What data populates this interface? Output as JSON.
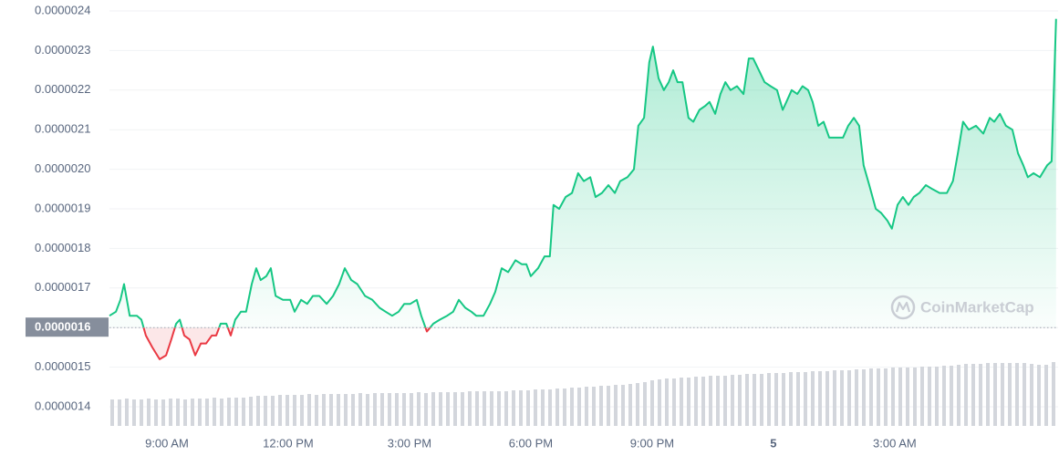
{
  "chart_data": {
    "type": "line",
    "color_up": "#16c784",
    "color_down": "#ea3943",
    "volume_color": "#d3d6dc",
    "grid": true,
    "xlim": [
      7.58,
      31.04
    ],
    "xticks": [
      {
        "value": 9,
        "label": "9:00 AM"
      },
      {
        "value": 12,
        "label": "12:00 PM"
      },
      {
        "value": 15,
        "label": "3:00 PM"
      },
      {
        "value": 18,
        "label": "6:00 PM"
      },
      {
        "value": 21,
        "label": "9:00 PM"
      },
      {
        "value": 24,
        "label": "5"
      },
      {
        "value": 27,
        "label": "3:00 AM"
      }
    ],
    "ylim": [
      1.4e-06,
      2.4e-06
    ],
    "yticks": [
      {
        "value": 1.4e-06,
        "label": "0.0000014"
      },
      {
        "value": 1.5e-06,
        "label": "0.0000015"
      },
      {
        "value": 1.6e-06,
        "label": "0.0000016"
      },
      {
        "value": 1.7e-06,
        "label": "0.0000017"
      },
      {
        "value": 1.8e-06,
        "label": "0.0000018"
      },
      {
        "value": 1.9e-06,
        "label": "0.0000019"
      },
      {
        "value": 2e-06,
        "label": "0.0000020"
      },
      {
        "value": 2.1e-06,
        "label": "0.0000021"
      },
      {
        "value": 2.2e-06,
        "label": "0.0000022"
      },
      {
        "value": 2.3e-06,
        "label": "0.0000023"
      },
      {
        "value": 2.4e-06,
        "label": "0.0000024"
      }
    ],
    "baseline": {
      "value": 1.6e-06,
      "label": "0.0000016"
    },
    "watermark": "CoinMarketCap",
    "x": [
      7.58,
      7.74,
      7.85,
      7.94,
      8.08,
      8.26,
      8.37,
      8.48,
      8.64,
      8.82,
      8.98,
      9.11,
      9.23,
      9.32,
      9.43,
      9.56,
      9.7,
      9.84,
      9.97,
      10.11,
      10.22,
      10.33,
      10.47,
      10.58,
      10.69,
      10.83,
      10.96,
      11.1,
      11.21,
      11.32,
      11.46,
      11.57,
      11.69,
      11.87,
      12.05,
      12.16,
      12.32,
      12.47,
      12.61,
      12.77,
      12.95,
      13.11,
      13.26,
      13.4,
      13.56,
      13.71,
      13.9,
      14.08,
      14.26,
      14.41,
      14.57,
      14.73,
      14.87,
      15.02,
      15.18,
      15.29,
      15.43,
      15.59,
      15.75,
      15.93,
      16.08,
      16.22,
      16.38,
      16.53,
      16.65,
      16.83,
      16.99,
      17.12,
      17.28,
      17.44,
      17.62,
      17.78,
      17.89,
      18.0,
      18.18,
      18.34,
      18.47,
      18.56,
      18.7,
      18.86,
      19.02,
      19.17,
      19.31,
      19.47,
      19.6,
      19.76,
      19.92,
      20.08,
      20.21,
      20.39,
      20.55,
      20.66,
      20.8,
      20.93,
      21.02,
      21.16,
      21.29,
      21.41,
      21.52,
      21.63,
      21.75,
      21.9,
      22.02,
      22.17,
      22.31,
      22.42,
      22.56,
      22.69,
      22.81,
      22.94,
      23.1,
      23.26,
      23.39,
      23.5,
      23.64,
      23.78,
      23.93,
      24.09,
      24.23,
      24.32,
      24.45,
      24.59,
      24.72,
      24.86,
      24.97,
      25.11,
      25.24,
      25.38,
      25.54,
      25.72,
      25.85,
      25.99,
      26.12,
      26.23,
      26.37,
      26.53,
      26.66,
      26.82,
      26.93,
      27.07,
      27.2,
      27.34,
      27.47,
      27.61,
      27.77,
      27.93,
      28.11,
      28.29,
      28.44,
      28.56,
      28.69,
      28.83,
      29.01,
      29.19,
      29.35,
      29.46,
      29.6,
      29.75,
      29.91,
      30.05,
      30.18,
      30.29,
      30.43,
      30.59,
      30.77,
      30.88,
      30.99
    ],
    "values": [
      1.63e-06,
      1.64e-06,
      1.67e-06,
      1.71e-06,
      1.63e-06,
      1.63e-06,
      1.62e-06,
      1.58e-06,
      1.55e-06,
      1.52e-06,
      1.53e-06,
      1.57e-06,
      1.61e-06,
      1.62e-06,
      1.58e-06,
      1.57e-06,
      1.53e-06,
      1.56e-06,
      1.56e-06,
      1.58e-06,
      1.58e-06,
      1.61e-06,
      1.61e-06,
      1.58e-06,
      1.62e-06,
      1.64e-06,
      1.64e-06,
      1.71e-06,
      1.75e-06,
      1.72e-06,
      1.73e-06,
      1.75e-06,
      1.68e-06,
      1.67e-06,
      1.67e-06,
      1.64e-06,
      1.67e-06,
      1.66e-06,
      1.68e-06,
      1.68e-06,
      1.66e-06,
      1.68e-06,
      1.71e-06,
      1.75e-06,
      1.72e-06,
      1.71e-06,
      1.68e-06,
      1.67e-06,
      1.65e-06,
      1.64e-06,
      1.63e-06,
      1.64e-06,
      1.66e-06,
      1.66e-06,
      1.67e-06,
      1.63e-06,
      1.59e-06,
      1.61e-06,
      1.62e-06,
      1.63e-06,
      1.64e-06,
      1.67e-06,
      1.65e-06,
      1.64e-06,
      1.63e-06,
      1.63e-06,
      1.66e-06,
      1.69e-06,
      1.75e-06,
      1.74e-06,
      1.77e-06,
      1.76e-06,
      1.76e-06,
      1.73e-06,
      1.75e-06,
      1.78e-06,
      1.78e-06,
      1.91e-06,
      1.9e-06,
      1.93e-06,
      1.94e-06,
      1.99e-06,
      1.97e-06,
      1.98e-06,
      1.93e-06,
      1.94e-06,
      1.96e-06,
      1.94e-06,
      1.97e-06,
      1.98e-06,
      2e-06,
      2.11e-06,
      2.13e-06,
      2.27e-06,
      2.31e-06,
      2.23e-06,
      2.2e-06,
      2.22e-06,
      2.25e-06,
      2.22e-06,
      2.22e-06,
      2.13e-06,
      2.12e-06,
      2.15e-06,
      2.16e-06,
      2.17e-06,
      2.14e-06,
      2.19e-06,
      2.22e-06,
      2.2e-06,
      2.21e-06,
      2.19e-06,
      2.28e-06,
      2.28e-06,
      2.25e-06,
      2.22e-06,
      2.21e-06,
      2.2e-06,
      2.15e-06,
      2.17e-06,
      2.2e-06,
      2.19e-06,
      2.21e-06,
      2.2e-06,
      2.17e-06,
      2.11e-06,
      2.12e-06,
      2.08e-06,
      2.08e-06,
      2.08e-06,
      2.11e-06,
      2.13e-06,
      2.11e-06,
      2.01e-06,
      1.96e-06,
      1.9e-06,
      1.89e-06,
      1.87e-06,
      1.85e-06,
      1.91e-06,
      1.93e-06,
      1.91e-06,
      1.93e-06,
      1.94e-06,
      1.96e-06,
      1.95e-06,
      1.94e-06,
      1.94e-06,
      1.97e-06,
      2.04e-06,
      2.12e-06,
      2.1e-06,
      2.11e-06,
      2.09e-06,
      2.13e-06,
      2.12e-06,
      2.14e-06,
      2.11e-06,
      2.1e-06,
      2.04e-06,
      2.01e-06,
      1.98e-06,
      1.99e-06,
      1.98e-06,
      2.01e-06,
      2.02e-06,
      2.38e-06
    ],
    "volume": {
      "ylim": [
        0,
        100
      ],
      "values": [
        29,
        29,
        30,
        29,
        29,
        30,
        29,
        29,
        30,
        30,
        29,
        30,
        30,
        30,
        31,
        30,
        31,
        31,
        31,
        32,
        33,
        33,
        33,
        34,
        34,
        34,
        34,
        35,
        34,
        35,
        35,
        35,
        35,
        35,
        36,
        35,
        36,
        36,
        36,
        36,
        36,
        36,
        37,
        36,
        37,
        37,
        37,
        37,
        37,
        38,
        38,
        38,
        38,
        38,
        38,
        39,
        39,
        39,
        40,
        40,
        40,
        41,
        41,
        42,
        42,
        43,
        43,
        44,
        44,
        45,
        45,
        46,
        47,
        48,
        50,
        51,
        52,
        52,
        53,
        53,
        54,
        54,
        55,
        55,
        55,
        56,
        56,
        57,
        57,
        57,
        58,
        58,
        58,
        59,
        59,
        59,
        60,
        60,
        60,
        61,
        61,
        61,
        62,
        62,
        63,
        63,
        63,
        64,
        64,
        64,
        64,
        65,
        65,
        65,
        66,
        66,
        67,
        68,
        68,
        68,
        69,
        69,
        69,
        69,
        69,
        69,
        68,
        67,
        67,
        70
      ]
    }
  }
}
